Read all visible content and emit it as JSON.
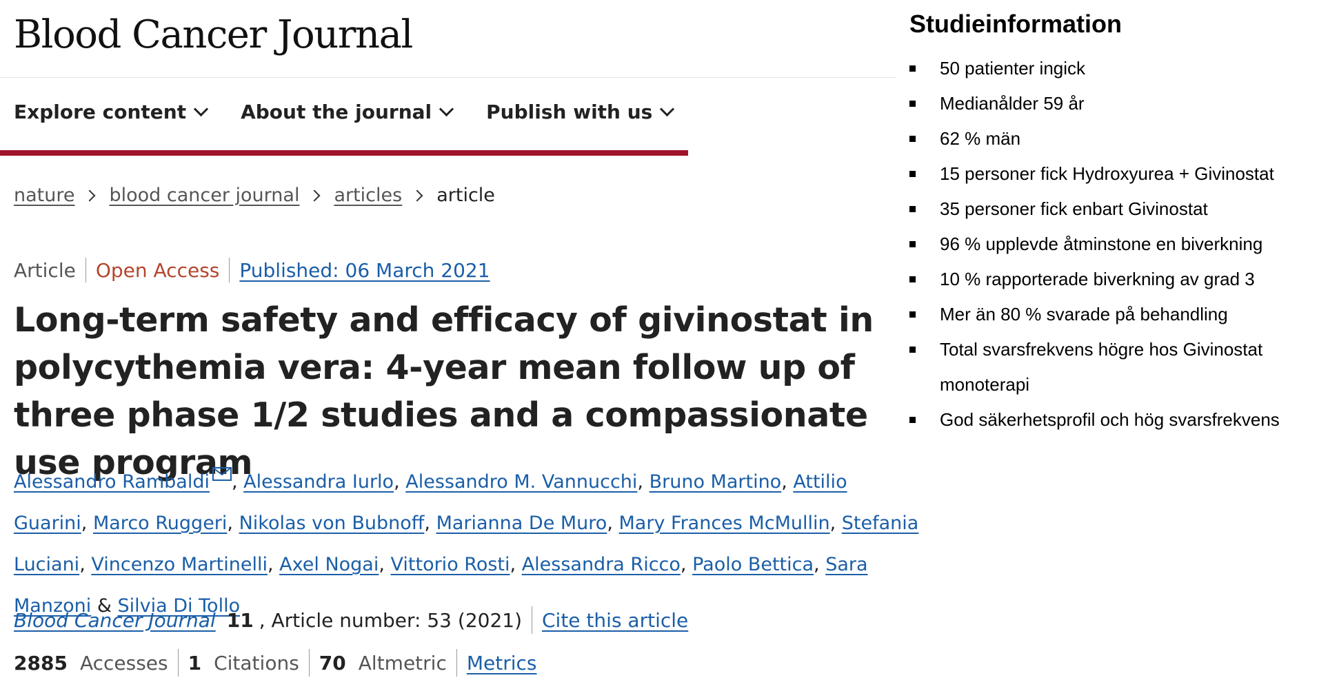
{
  "header": {
    "logo": "Blood Cancer Journal"
  },
  "nav": {
    "items": [
      {
        "label": "Explore content"
      },
      {
        "label": "About the journal"
      },
      {
        "label": "Publish with us"
      }
    ]
  },
  "breadcrumb": {
    "items": [
      "nature",
      "blood cancer journal",
      "articles"
    ],
    "current": "article"
  },
  "article": {
    "type": "Article",
    "access": "Open Access",
    "published": "Published: 06 March 2021",
    "title": "Long-term safety and efficacy of givinostat in polycythemia vera: 4-year mean follow up of three phase 1/2 studies and a compassionate use program",
    "authors": [
      "Alessandro Rambaldi",
      "Alessandra Iurlo",
      "Alessandro M. Vannucchi",
      "Bruno Martino",
      "Attilio Guarini",
      "Marco Ruggeri",
      "Nikolas von Bubnoff",
      "Marianna De Muro",
      "Mary Frances McMullin",
      "Stefania Luciani",
      "Vincenzo Martinelli",
      "Axel Nogai",
      "Vittorio Rosti",
      "Alessandra Ricco",
      "Paolo Bettica",
      "Sara Manzoni",
      "Silvia Di Tollo"
    ],
    "and_separator": "&",
    "citation": {
      "journal": "Blood Cancer Journal",
      "volume": "11",
      "article_number": ", Article number: 53 (2021)",
      "cite_label": "Cite this article"
    },
    "metrics": {
      "accesses_count": "2885",
      "accesses_label": "Accesses",
      "citations_count": "1",
      "citations_label": "Citations",
      "altmetric_count": "70",
      "altmetric_label": "Altmetric",
      "metrics_link": "Metrics"
    }
  },
  "study_info": {
    "title": "Studieinformation",
    "items": [
      "50 patienter ingick",
      "Medianålder 59 år",
      "62 % män",
      "15 personer fick Hydroxyurea + Givinostat",
      "35 personer fick enbart Givinostat",
      "96 % upplevde åtminstone en biverkning",
      "10 % rapporterade biverkning av grad 3",
      "Mer än 80 % svarade på behandling",
      "Total svarsfrekvens högre hos Givinostat monoterapi",
      "God säkerhetsprofil och hög svarsfrekvens"
    ]
  },
  "colors": {
    "brand_red": "#a1122b",
    "link_blue": "#1a5ea8",
    "open_access_orange": "#b5452c"
  }
}
